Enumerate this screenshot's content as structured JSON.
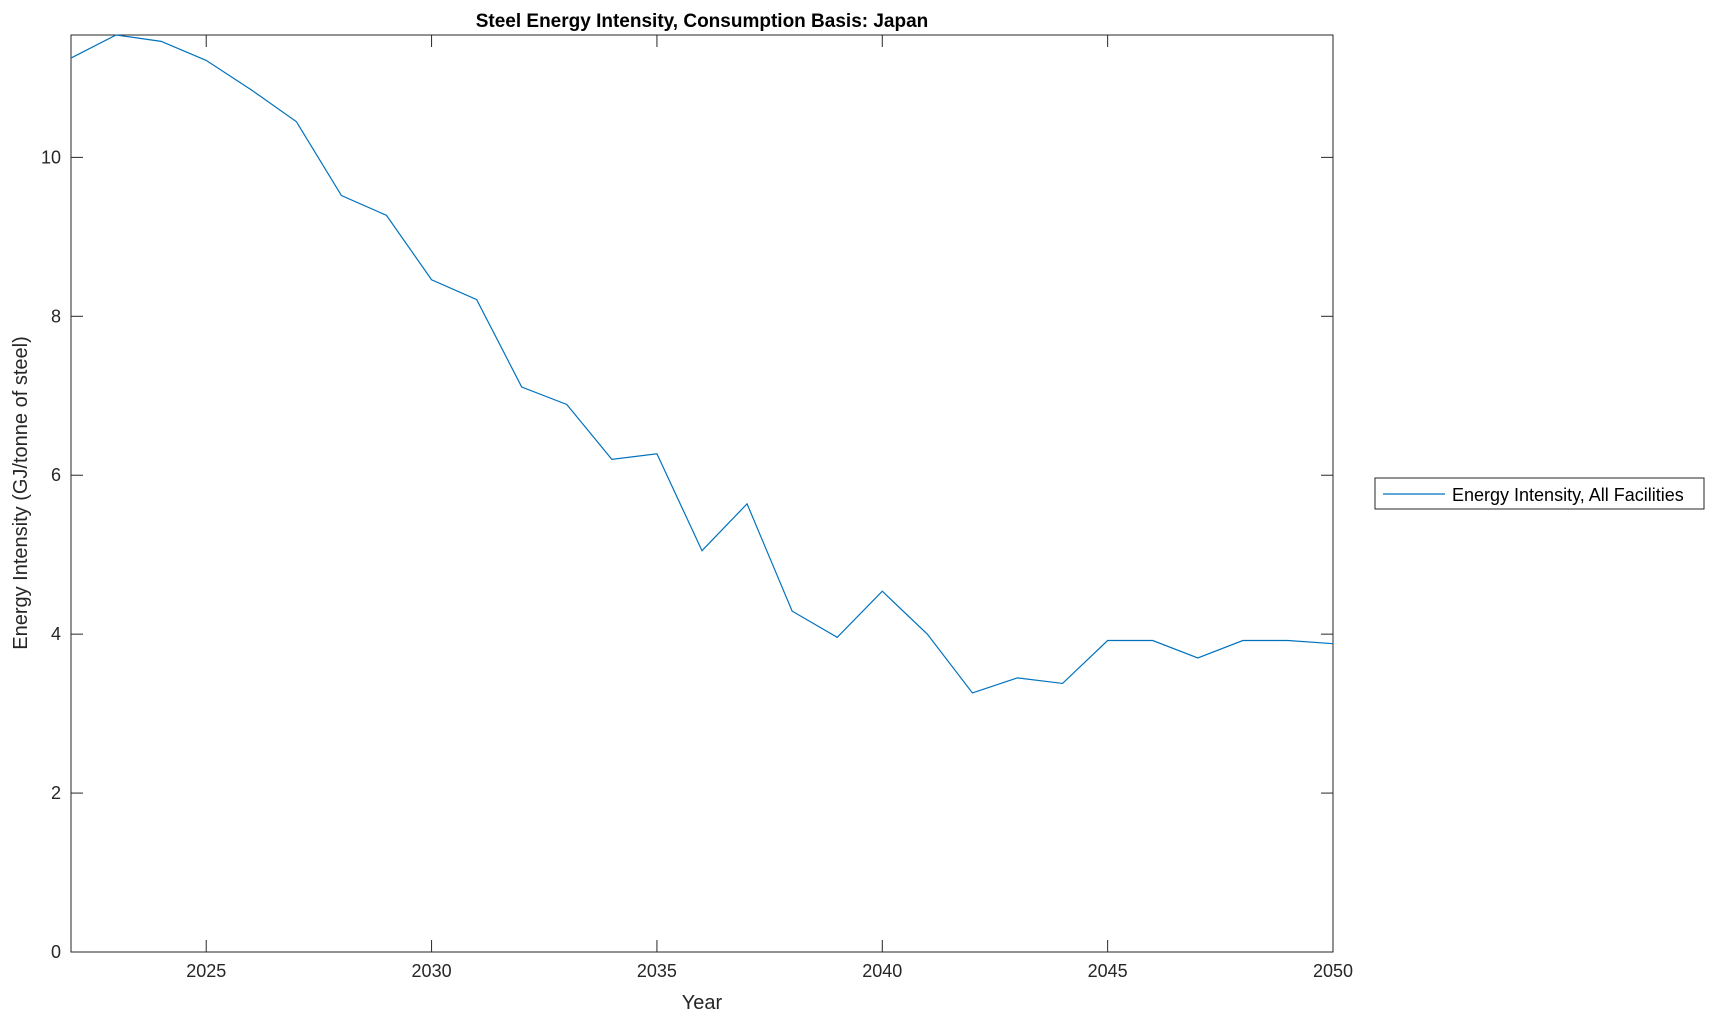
{
  "chart_data": {
    "type": "line",
    "title": "Steel Energy Intensity, Consumption Basis: Japan",
    "xlabel": "Year",
    "ylabel": "Energy Intensity (GJ/tonne of steel)",
    "xlim": [
      2022,
      2050
    ],
    "ylim": [
      0,
      11.54
    ],
    "xticks": [
      2025,
      2030,
      2035,
      2040,
      2045,
      2050
    ],
    "yticks": [
      0,
      2,
      4,
      6,
      8,
      10
    ],
    "grid": false,
    "legend_placement": "outside-right",
    "x": [
      2022,
      2023,
      2024,
      2025,
      2026,
      2027,
      2028,
      2029,
      2030,
      2031,
      2032,
      2033,
      2034,
      2035,
      2036,
      2037,
      2038,
      2039,
      2040,
      2041,
      2042,
      2043,
      2044,
      2045,
      2046,
      2047,
      2048,
      2049,
      2050
    ],
    "series": [
      {
        "name": "Energy Intensity, All Facilities",
        "color": "#0072BD",
        "values": [
          11.25,
          11.54,
          11.46,
          11.22,
          10.85,
          10.45,
          9.52,
          9.27,
          8.46,
          8.21,
          7.11,
          6.89,
          6.2,
          6.27,
          5.05,
          5.64,
          4.29,
          3.96,
          4.54,
          4.0,
          3.26,
          3.45,
          3.38,
          3.92,
          3.92,
          3.7,
          3.92,
          3.92,
          3.88
        ]
      }
    ]
  }
}
